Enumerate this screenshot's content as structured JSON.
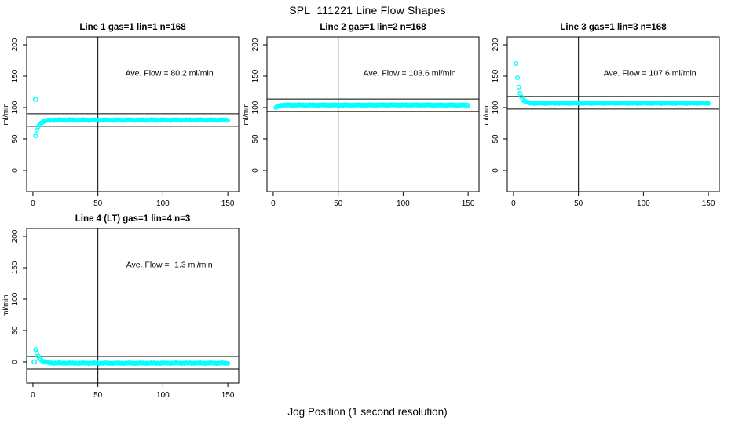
{
  "figure": {
    "title": "SPL_111221  Line Flow Shapes",
    "xlabel": "Jog Position (1 second resolution)",
    "colors": {
      "points": "#00FFFF",
      "axis": "#000000",
      "background": "#FFFFFF"
    }
  },
  "chart_data": [
    {
      "type": "scatter",
      "title": "Line 1 gas=1 lin=1 n=168",
      "annotation": "Ave. Flow =  80.2  ml/min",
      "ave_flow_ml_min": 80.2,
      "gas": 1,
      "lin": 1,
      "n": 168,
      "ylabel": "ml/min",
      "x_ticks": [
        0,
        50,
        100,
        150
      ],
      "y_ticks": [
        0,
        50,
        100,
        150,
        200
      ],
      "x_range": [
        -4.8,
        158.4
      ],
      "y_range": [
        -33.8,
        212.5
      ],
      "vline_x": 50,
      "ref_lines": [
        90.2,
        70.2
      ],
      "series_model": {
        "x_start": 2,
        "x_end": 150,
        "step": 1,
        "plateau": 80,
        "amp": -25,
        "tau": 2.5,
        "noise": 0.8
      },
      "outliers": [
        [
          2,
          113
        ]
      ],
      "grid": "off",
      "row": 0,
      "col": 0
    },
    {
      "type": "scatter",
      "title": "Line 2 gas=1 lin=2 n=168",
      "annotation": "Ave. Flow =  103.6  ml/min",
      "ave_flow_ml_min": 103.6,
      "gas": 1,
      "lin": 2,
      "n": 168,
      "ylabel": "ml/min",
      "x_ticks": [
        0,
        50,
        100,
        150
      ],
      "y_ticks": [
        0,
        50,
        100,
        150,
        200
      ],
      "x_range": [
        -4.8,
        158.4
      ],
      "y_range": [
        -33.8,
        212.5
      ],
      "vline_x": 50,
      "ref_lines": [
        113.6,
        93.6
      ],
      "series_model": {
        "x_start": 2,
        "x_end": 150,
        "step": 1,
        "plateau": 104,
        "amp": -4,
        "tau": 2.0,
        "noise": 0.7
      },
      "outliers": [],
      "grid": "off",
      "row": 0,
      "col": 1
    },
    {
      "type": "scatter",
      "title": "Line 3 gas=1 lin=3 n=168",
      "annotation": "Ave. Flow =  107.6  ml/min",
      "ave_flow_ml_min": 107.6,
      "gas": 1,
      "lin": 3,
      "n": 168,
      "ylabel": "ml/min",
      "x_ticks": [
        0,
        50,
        100,
        150
      ],
      "y_ticks": [
        0,
        50,
        100,
        150,
        200
      ],
      "x_range": [
        -4.8,
        158.4
      ],
      "y_range": [
        -33.8,
        212.5
      ],
      "vline_x": 50,
      "ref_lines": [
        117.6,
        97.6
      ],
      "series_model": {
        "x_start": 2,
        "x_end": 150,
        "step": 1,
        "plateau": 107,
        "amp": 63,
        "tau": 2.2,
        "noise": 0.8
      },
      "outliers": [],
      "grid": "off",
      "row": 0,
      "col": 2
    },
    {
      "type": "scatter",
      "title": "Line 4 (LT) gas=1 lin=4 n=3",
      "annotation": "Ave. Flow =  -1.3  ml/min",
      "ave_flow_ml_min": -1.3,
      "gas": 1,
      "lin": 4,
      "n": 3,
      "ylabel": "ml/min",
      "x_ticks": [
        0,
        50,
        100,
        150
      ],
      "y_ticks": [
        0,
        50,
        100,
        150,
        200
      ],
      "x_range": [
        -4.8,
        158.4
      ],
      "y_range": [
        -33.8,
        212.5
      ],
      "vline_x": 50,
      "ref_lines": [
        8.7,
        -11.3
      ],
      "series_model": {
        "x_start": 2,
        "x_end": 150,
        "step": 1,
        "plateau": -2,
        "amp": 22,
        "tau": 3.0,
        "noise": 0.8
      },
      "outliers": [
        [
          1,
          0
        ]
      ],
      "grid": "off",
      "row": 1,
      "col": 0
    }
  ]
}
